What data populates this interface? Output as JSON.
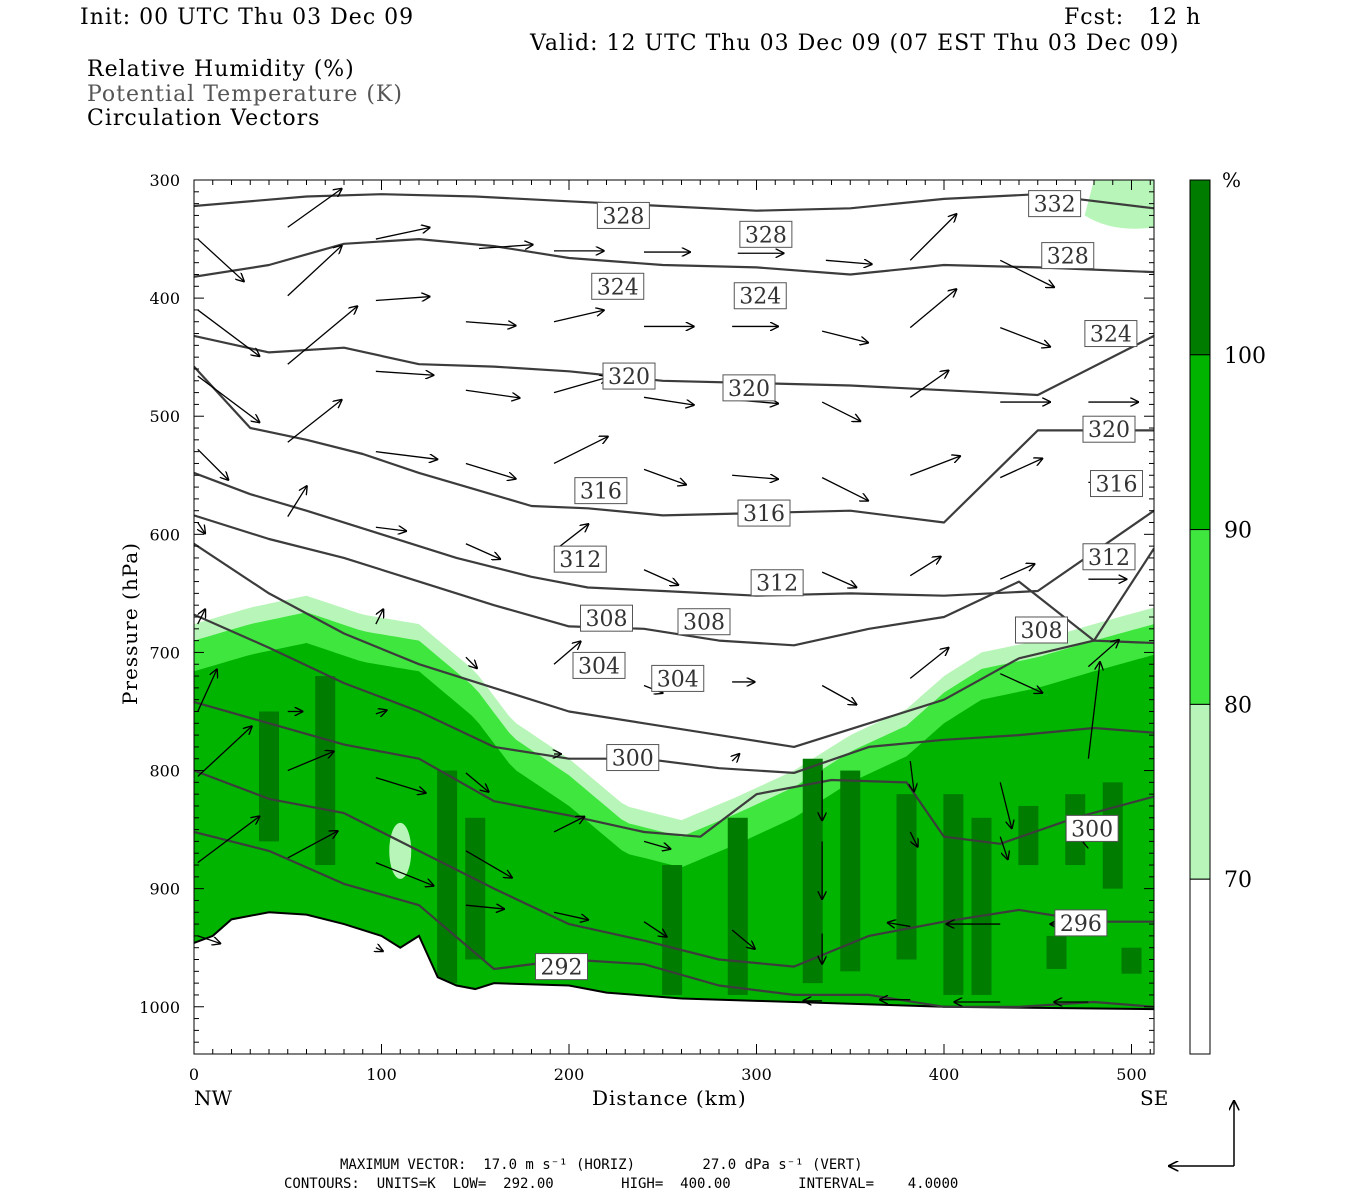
{
  "header": {
    "init": "Init: 00 UTC Thu 03 Dec 09",
    "fcst": "Fcst:   12 h",
    "valid": "Valid: 12 UTC Thu 03 Dec 09 (07 EST Thu 03 Dec 09)",
    "field1": "Relative Humidity (%)",
    "field2": "Potential Temperature (K)",
    "field3": "Circulation Vectors"
  },
  "footer": {
    "line1": "MAXIMUM VECTOR:  17.0 m s⁻¹ (HORIZ)        27.0 dPa s⁻¹ (VERT)",
    "line2": "CONTOURS:  UNITS=K  LOW=  292.00        HIGH=  400.00        INTERVAL=    4.0000"
  },
  "chart_data": {
    "type": "cross-section",
    "xlabel": "Distance (km)",
    "ylabel": "Pressure (hPa)",
    "xlim": [
      0,
      512
    ],
    "ylim": [
      300,
      1040
    ],
    "x_ticks": [
      0,
      100,
      200,
      300,
      400,
      500
    ],
    "y_ticks": [
      300,
      400,
      500,
      600,
      700,
      800,
      900,
      1000
    ],
    "x_end_labels": {
      "left": "NW",
      "right": "SE"
    },
    "colorbar": {
      "unit": "%",
      "labels": [
        "70",
        "80",
        "90",
        "100"
      ],
      "bins": [
        {
          "min": 0,
          "max": 70,
          "color": "#ffffff"
        },
        {
          "min": 70,
          "max": 80,
          "color": "#b8f5b8"
        },
        {
          "min": 80,
          "max": 90,
          "color": "#3ee63e"
        },
        {
          "min": 90,
          "max": 100,
          "color": "#00b400"
        },
        {
          "min": 100,
          "max": 110,
          "color": "#007d00"
        }
      ]
    },
    "theta_contours": [
      {
        "label": "332",
        "x": [
          0,
          60,
          100,
          150,
          200,
          250,
          300,
          350,
          400,
          450,
          512
        ],
        "p": [
          322,
          314,
          312,
          314,
          318,
          322,
          326,
          324,
          316,
          312,
          324
        ]
      },
      {
        "label": "328",
        "x": [
          0,
          40,
          80,
          120,
          160,
          200,
          250,
          300,
          350,
          400,
          450,
          512
        ],
        "p": [
          382,
          372,
          354,
          350,
          356,
          366,
          372,
          374,
          380,
          372,
          374,
          378
        ]
      },
      {
        "label": "324",
        "x": [
          0,
          40,
          80,
          120,
          160,
          200,
          250,
          300,
          350,
          400,
          450,
          512
        ],
        "p": [
          432,
          446,
          442,
          456,
          458,
          462,
          470,
          472,
          474,
          478,
          482,
          432
        ]
      },
      {
        "label": "320",
        "x": [
          0,
          30,
          60,
          90,
          120,
          150,
          180,
          210,
          250,
          300,
          350,
          400,
          450,
          512
        ],
        "p": [
          458,
          510,
          520,
          532,
          548,
          562,
          576,
          578,
          584,
          582,
          580,
          590,
          512,
          512
        ]
      },
      {
        "label": "316",
        "x": [
          0,
          30,
          60,
          100,
          140,
          180,
          210,
          250,
          300,
          350,
          400,
          450,
          512
        ],
        "p": [
          548,
          566,
          580,
          600,
          620,
          636,
          645,
          648,
          652,
          650,
          652,
          648,
          580
        ]
      },
      {
        "label": "312",
        "x": [
          0,
          40,
          80,
          120,
          160,
          200,
          240,
          280,
          320,
          360,
          400,
          440,
          480,
          512
        ],
        "p": [
          584,
          604,
          620,
          640,
          660,
          678,
          680,
          690,
          694,
          680,
          670,
          640,
          690,
          612
        ]
      },
      {
        "label": "308",
        "x": [
          0,
          40,
          80,
          120,
          160,
          200,
          240,
          280,
          320,
          360,
          400,
          440,
          480,
          512
        ],
        "p": [
          608,
          650,
          684,
          710,
          730,
          750,
          760,
          770,
          780,
          760,
          740,
          705,
          690,
          692
        ]
      },
      {
        "label": "304",
        "x": [
          0,
          40,
          80,
          120,
          160,
          200,
          240,
          280,
          320,
          360,
          400,
          440,
          480,
          512
        ],
        "p": [
          668,
          696,
          726,
          750,
          780,
          790,
          790,
          798,
          802,
          780,
          774,
          770,
          764,
          768
        ]
      },
      {
        "label": "300",
        "x": [
          0,
          40,
          80,
          120,
          160,
          200,
          240,
          270,
          300,
          340,
          380,
          400,
          430,
          470,
          512
        ],
        "p": [
          742,
          760,
          778,
          790,
          826,
          838,
          852,
          856,
          820,
          808,
          810,
          856,
          862,
          840,
          822
        ]
      },
      {
        "label": "296",
        "x": [
          0,
          40,
          80,
          120,
          160,
          200,
          240,
          280,
          320,
          360,
          400,
          440,
          480,
          512
        ],
        "p": [
          800,
          824,
          836,
          868,
          900,
          930,
          944,
          960,
          966,
          940,
          928,
          918,
          928,
          928
        ]
      },
      {
        "label": "292",
        "x": [
          0,
          40,
          80,
          120,
          160,
          200,
          240,
          280,
          320,
          360,
          400,
          440,
          480,
          512
        ],
        "p": [
          852,
          868,
          896,
          914,
          968,
          960,
          964,
          982,
          990,
          990,
          1000,
          1000,
          996,
          1000
        ]
      }
    ],
    "contour_labels": [
      {
        "text": "332",
        "x": 459,
        "p": 320
      },
      {
        "text": "328",
        "x": 229,
        "p": 330
      },
      {
        "text": "328",
        "x": 305,
        "p": 346
      },
      {
        "text": "328",
        "x": 466,
        "p": 364
      },
      {
        "text": "324",
        "x": 226,
        "p": 390
      },
      {
        "text": "324",
        "x": 302,
        "p": 398
      },
      {
        "text": "324",
        "x": 489,
        "p": 430
      },
      {
        "text": "320",
        "x": 232,
        "p": 466
      },
      {
        "text": "320",
        "x": 296,
        "p": 476
      },
      {
        "text": "320",
        "x": 488,
        "p": 511
      },
      {
        "text": "316",
        "x": 217,
        "p": 563
      },
      {
        "text": "316",
        "x": 304,
        "p": 582
      },
      {
        "text": "316",
        "x": 492,
        "p": 557
      },
      {
        "text": "312",
        "x": 206,
        "p": 621
      },
      {
        "text": "312",
        "x": 311,
        "p": 641
      },
      {
        "text": "312",
        "x": 488,
        "p": 619
      },
      {
        "text": "308",
        "x": 220,
        "p": 671
      },
      {
        "text": "308",
        "x": 272,
        "p": 674
      },
      {
        "text": "308",
        "x": 452,
        "p": 681
      },
      {
        "text": "304",
        "x": 216,
        "p": 711
      },
      {
        "text": "304",
        "x": 258,
        "p": 722
      },
      {
        "text": "300",
        "x": 234,
        "p": 789
      },
      {
        "text": "300",
        "x": 479,
        "p": 849
      },
      {
        "text": "296",
        "x": 473,
        "p": 929
      },
      {
        "text": "292",
        "x": 196,
        "p": 966
      }
    ],
    "terrain_surface_hpa": {
      "x": [
        0,
        10,
        20,
        40,
        60,
        80,
        100,
        110,
        120,
        130,
        140,
        150,
        160,
        200,
        220,
        260,
        300,
        400,
        512
      ],
      "p": [
        946,
        940,
        926,
        920,
        922,
        930,
        940,
        950,
        940,
        975,
        982,
        985,
        980,
        982,
        988,
        993,
        995,
        1000,
        1002
      ]
    },
    "vectors": [
      {
        "x": 48,
        "p": 340,
        "u": 28,
        "w": 20
      },
      {
        "x": 95,
        "p": 350,
        "u": 28,
        "w": 6
      },
      {
        "x": 150,
        "p": 358,
        "u": 28,
        "w": 2
      },
      {
        "x": 190,
        "p": 360,
        "u": 26,
        "w": 0
      },
      {
        "x": 238,
        "p": 361,
        "u": 24,
        "w": 0
      },
      {
        "x": 288,
        "p": 362,
        "u": 24,
        "w": 0
      },
      {
        "x": 335,
        "p": 368,
        "u": 24,
        "w": -2
      },
      {
        "x": 380,
        "p": 368,
        "u": 24,
        "w": 24
      },
      {
        "x": 428,
        "p": 368,
        "u": 28,
        "w": -14
      },
      {
        "x": 0,
        "p": 350,
        "u": 24,
        "w": -22
      },
      {
        "x": 48,
        "p": 398,
        "u": 28,
        "w": 26
      },
      {
        "x": 95,
        "p": 402,
        "u": 28,
        "w": 2
      },
      {
        "x": 143,
        "p": 420,
        "u": 26,
        "w": -2
      },
      {
        "x": 190,
        "p": 420,
        "u": 26,
        "w": 6
      },
      {
        "x": 238,
        "p": 424,
        "u": 26,
        "w": 0
      },
      {
        "x": 285,
        "p": 424,
        "u": 24,
        "w": 0
      },
      {
        "x": 333,
        "p": 428,
        "u": 24,
        "w": -6
      },
      {
        "x": 380,
        "p": 425,
        "u": 24,
        "w": 20
      },
      {
        "x": 428,
        "p": 425,
        "u": 26,
        "w": -10
      },
      {
        "x": 0,
        "p": 410,
        "u": 32,
        "w": -24
      },
      {
        "x": 48,
        "p": 456,
        "u": 36,
        "w": 30
      },
      {
        "x": 95,
        "p": 462,
        "u": 30,
        "w": -2
      },
      {
        "x": 143,
        "p": 478,
        "u": 28,
        "w": -4
      },
      {
        "x": 190,
        "p": 480,
        "u": 28,
        "w": 8
      },
      {
        "x": 238,
        "p": 484,
        "u": 26,
        "w": -4
      },
      {
        "x": 285,
        "p": 486,
        "u": 24,
        "w": -2
      },
      {
        "x": 333,
        "p": 488,
        "u": 20,
        "w": -10
      },
      {
        "x": 380,
        "p": 484,
        "u": 20,
        "w": 14
      },
      {
        "x": 428,
        "p": 488,
        "u": 26,
        "w": 0
      },
      {
        "x": 475,
        "p": 488,
        "u": 26,
        "w": 0
      },
      {
        "x": 0,
        "p": 466,
        "u": 32,
        "w": -24
      },
      {
        "x": 48,
        "p": 522,
        "u": 28,
        "w": 22
      },
      {
        "x": 95,
        "p": 530,
        "u": 32,
        "w": -4
      },
      {
        "x": 143,
        "p": 540,
        "u": 26,
        "w": -8
      },
      {
        "x": 190,
        "p": 540,
        "u": 28,
        "w": 14
      },
      {
        "x": 238,
        "p": 545,
        "u": 22,
        "w": -8
      },
      {
        "x": 285,
        "p": 550,
        "u": 24,
        "w": -2
      },
      {
        "x": 333,
        "p": 552,
        "u": 24,
        "w": -12
      },
      {
        "x": 380,
        "p": 550,
        "u": 26,
        "w": 10
      },
      {
        "x": 428,
        "p": 552,
        "u": 22,
        "w": 10
      },
      {
        "x": 475,
        "p": 556,
        "u": 20,
        "w": 0
      },
      {
        "x": 0,
        "p": 528,
        "u": 16,
        "w": -16
      },
      {
        "x": 48,
        "p": 585,
        "u": 10,
        "w": 16
      },
      {
        "x": 95,
        "p": 594,
        "u": 16,
        "w": -2
      },
      {
        "x": 143,
        "p": 608,
        "u": 18,
        "w": -8
      },
      {
        "x": 190,
        "p": 614,
        "u": 18,
        "w": 14
      },
      {
        "x": 238,
        "p": 630,
        "u": 18,
        "w": -8
      },
      {
        "x": 333,
        "p": 632,
        "u": 18,
        "w": -8
      },
      {
        "x": 380,
        "p": 635,
        "u": 16,
        "w": 10
      },
      {
        "x": 428,
        "p": 638,
        "u": 18,
        "w": 8
      },
      {
        "x": 475,
        "p": 638,
        "u": 20,
        "w": 0
      },
      {
        "x": 0,
        "p": 590,
        "u": 4,
        "w": -6
      },
      {
        "x": 95,
        "p": 676,
        "u": 4,
        "w": 8
      },
      {
        "x": 143,
        "p": 704,
        "u": 6,
        "w": -6
      },
      {
        "x": 190,
        "p": 710,
        "u": 14,
        "w": 12
      },
      {
        "x": 238,
        "p": 728,
        "u": 10,
        "w": -4
      },
      {
        "x": 285,
        "p": 725,
        "u": 12,
        "w": 0
      },
      {
        "x": 333,
        "p": 728,
        "u": 18,
        "w": -10
      },
      {
        "x": 380,
        "p": 722,
        "u": 20,
        "w": 16
      },
      {
        "x": 428,
        "p": 718,
        "u": 22,
        "w": -10
      },
      {
        "x": 475,
        "p": 712,
        "u": 16,
        "w": 14
      },
      {
        "x": 0,
        "p": 676,
        "u": 4,
        "w": 8
      },
      {
        "x": 0,
        "p": 750,
        "u": 10,
        "w": 22
      },
      {
        "x": 48,
        "p": 750,
        "u": 8,
        "w": 0
      },
      {
        "x": 95,
        "p": 752,
        "u": 6,
        "w": 2
      },
      {
        "x": 0,
        "p": 805,
        "u": 28,
        "w": 26
      },
      {
        "x": 48,
        "p": 800,
        "u": 24,
        "w": 10
      },
      {
        "x": 95,
        "p": 806,
        "u": 26,
        "w": -8
      },
      {
        "x": 143,
        "p": 802,
        "u": 12,
        "w": -10
      },
      {
        "x": 190,
        "p": 786,
        "u": 4,
        "w": 0
      },
      {
        "x": 285,
        "p": 792,
        "u": 4,
        "w": 4
      },
      {
        "x": 333,
        "p": 800,
        "u": 0,
        "w": -26
      },
      {
        "x": 380,
        "p": 792,
        "u": 2,
        "w": -16
      },
      {
        "x": 428,
        "p": 810,
        "u": 6,
        "w": -24
      },
      {
        "x": 475,
        "p": 790,
        "u": 6,
        "w": 50
      },
      {
        "x": 0,
        "p": 878,
        "u": 32,
        "w": 24
      },
      {
        "x": 48,
        "p": 874,
        "u": 26,
        "w": 14
      },
      {
        "x": 95,
        "p": 878,
        "u": 30,
        "w": -12
      },
      {
        "x": 143,
        "p": 868,
        "u": 24,
        "w": -14
      },
      {
        "x": 190,
        "p": 852,
        "u": 16,
        "w": 8
      },
      {
        "x": 238,
        "p": 860,
        "u": 14,
        "w": -4
      },
      {
        "x": 333,
        "p": 860,
        "u": 0,
        "w": -30
      },
      {
        "x": 380,
        "p": 852,
        "u": 4,
        "w": -8
      },
      {
        "x": 428,
        "p": 856,
        "u": 4,
        "w": -12
      },
      {
        "x": 475,
        "p": 866,
        "u": -10,
        "w": 12
      },
      {
        "x": 143,
        "p": 914,
        "u": 20,
        "w": -2
      },
      {
        "x": 190,
        "p": 920,
        "u": 18,
        "w": -4
      },
      {
        "x": 238,
        "p": 928,
        "u": 12,
        "w": -8
      },
      {
        "x": 285,
        "p": 935,
        "u": 12,
        "w": -10
      },
      {
        "x": 333,
        "p": 938,
        "u": 0,
        "w": -16
      },
      {
        "x": 380,
        "p": 932,
        "u": -12,
        "w": 2
      },
      {
        "x": 428,
        "p": 930,
        "u": -28,
        "w": 0
      },
      {
        "x": 475,
        "p": 930,
        "u": -20,
        "w": 0
      },
      {
        "x": 0,
        "p": 940,
        "u": 12,
        "w": -4
      },
      {
        "x": 95,
        "p": 950,
        "u": 4,
        "w": -2
      },
      {
        "x": 333,
        "p": 995,
        "u": -10,
        "w": 0
      },
      {
        "x": 380,
        "p": 994,
        "u": -16,
        "w": 0
      },
      {
        "x": 428,
        "p": 996,
        "u": -24,
        "w": 0
      },
      {
        "x": 475,
        "p": 996,
        "u": -18,
        "w": 0
      }
    ],
    "reference_vector": {
      "horiz": "17.0 m s-1",
      "vert": "27.0 dPa s-1"
    }
  }
}
